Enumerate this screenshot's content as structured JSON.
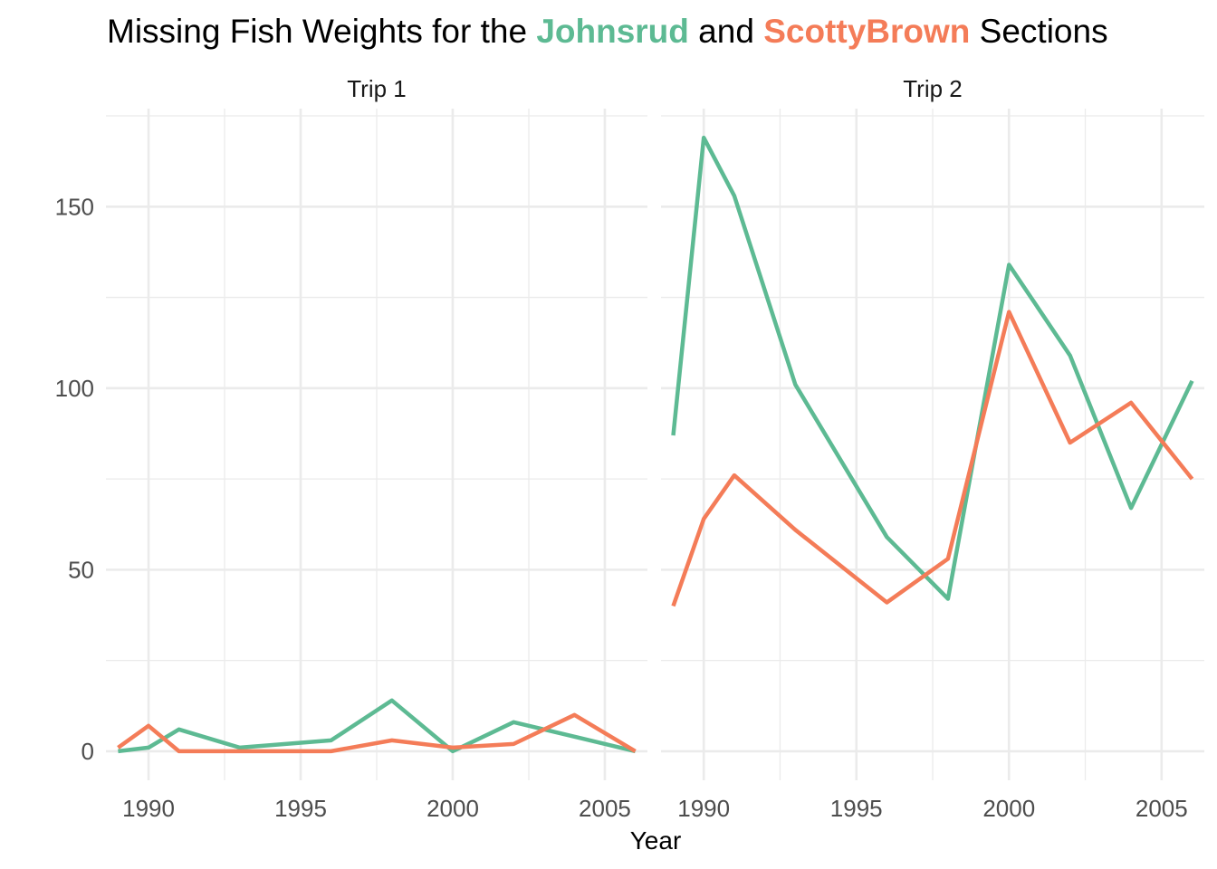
{
  "colors": {
    "johnsrud": "#5dba93",
    "scottybrown": "#f47c58"
  },
  "chart_data": {
    "type": "line",
    "title": {
      "prefix": "Missing Fish Weights for the ",
      "series_a": "Johnsrud",
      "middle": " and ",
      "series_b": "ScottyBrown",
      "suffix": " Sections"
    },
    "xlabel": "Year",
    "ylabel": "",
    "xlim": [
      1988.6,
      2006.4
    ],
    "ylim": [
      -8,
      177
    ],
    "x_ticks": [
      1990,
      1995,
      2000,
      2005
    ],
    "y_ticks": [
      0,
      50,
      100,
      150
    ],
    "panels": [
      {
        "label": "Trip 1",
        "series": [
          {
            "name": "Johnsrud",
            "color_key": "johnsrud",
            "x": [
              1989,
              1990,
              1991,
              1993,
              1996,
              1998,
              2000,
              2002,
              2006
            ],
            "y": [
              0,
              1,
              6,
              1,
              3,
              14,
              0,
              8,
              0
            ]
          },
          {
            "name": "ScottyBrown",
            "color_key": "scottybrown",
            "x": [
              1989,
              1990,
              1991,
              1993,
              1996,
              1998,
              2000,
              2002,
              2004,
              2006
            ],
            "y": [
              1,
              7,
              0,
              0,
              0,
              3,
              1,
              2,
              10,
              0
            ]
          }
        ]
      },
      {
        "label": "Trip 2",
        "series": [
          {
            "name": "Johnsrud",
            "color_key": "johnsrud",
            "x": [
              1989,
              1990,
              1991,
              1993,
              1996,
              1998,
              2000,
              2002,
              2004,
              2006
            ],
            "y": [
              87,
              169,
              153,
              101,
              59,
              42,
              134,
              109,
              67,
              102
            ]
          },
          {
            "name": "ScottyBrown",
            "color_key": "scottybrown",
            "x": [
              1989,
              1990,
              1991,
              1993,
              1996,
              1998,
              2000,
              2002,
              2004,
              2006
            ],
            "y": [
              40,
              64,
              76,
              61,
              41,
              53,
              121,
              85,
              96,
              75
            ]
          }
        ]
      }
    ]
  }
}
